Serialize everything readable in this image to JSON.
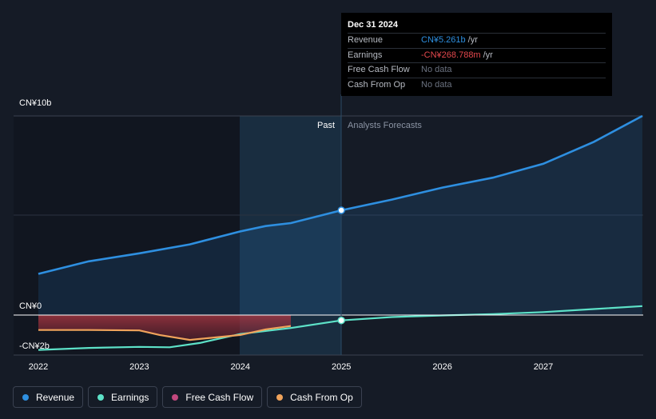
{
  "chart_data": {
    "type": "area",
    "x_ticks": [
      "2022",
      "2023",
      "2024",
      "2025",
      "2026",
      "2027"
    ],
    "y_ticks": [
      "CN¥10b",
      "CN¥0",
      "-CN¥2b"
    ],
    "ylim_billion": [
      -2,
      10
    ],
    "regions": {
      "past_label": "Past",
      "forecast_label": "Analysts Forecasts",
      "divider_date": 2025.0
    },
    "series": [
      {
        "name": "Revenue",
        "color": "#2e8fe0",
        "unit": "CN¥ billion",
        "points": [
          [
            2022.0,
            2.07
          ],
          [
            2022.5,
            2.7
          ],
          [
            2023.0,
            3.1
          ],
          [
            2023.5,
            3.55
          ],
          [
            2024.0,
            4.2
          ],
          [
            2024.25,
            4.47
          ],
          [
            2024.5,
            4.62
          ],
          [
            2025.0,
            5.261
          ],
          [
            2025.5,
            5.8
          ],
          [
            2026.0,
            6.4
          ],
          [
            2026.5,
            6.9
          ],
          [
            2027.0,
            7.6
          ],
          [
            2027.5,
            8.7
          ],
          [
            2027.98,
            10.0
          ]
        ]
      },
      {
        "name": "Earnings",
        "color": "#5de2c8",
        "unit": "CN¥ billion",
        "points": [
          [
            2022.0,
            -1.75
          ],
          [
            2022.5,
            -1.65
          ],
          [
            2023.0,
            -1.6
          ],
          [
            2023.3,
            -1.62
          ],
          [
            2023.6,
            -1.4
          ],
          [
            2024.0,
            -0.95
          ],
          [
            2024.5,
            -0.65
          ],
          [
            2025.0,
            -0.268788
          ],
          [
            2025.5,
            -0.1
          ],
          [
            2026.0,
            -0.02
          ],
          [
            2026.5,
            0.05
          ],
          [
            2027.0,
            0.15
          ],
          [
            2027.5,
            0.3
          ],
          [
            2027.98,
            0.45
          ]
        ]
      },
      {
        "name": "Free Cash Flow",
        "color": "#c2487e",
        "unit": "CN¥ billion",
        "points": []
      },
      {
        "name": "Cash From Op",
        "color": "#f0a35b",
        "unit": "CN¥ billion",
        "points": [
          [
            2022.0,
            -0.75
          ],
          [
            2022.5,
            -0.75
          ],
          [
            2023.0,
            -0.77
          ],
          [
            2023.2,
            -1.0
          ],
          [
            2023.5,
            -1.25
          ],
          [
            2024.0,
            -1.0
          ],
          [
            2024.25,
            -0.72
          ],
          [
            2024.5,
            -0.55
          ]
        ]
      }
    ],
    "highlight": {
      "date": 2025.0,
      "revenue": 5.261,
      "earnings": -0.268788
    }
  },
  "tooltip": {
    "date": "Dec 31 2024",
    "rows": [
      {
        "label": "Revenue",
        "value": "CN¥5.261b",
        "unit": "/yr",
        "color": "#2e8fe0"
      },
      {
        "label": "Earnings",
        "value": "-CN¥268.788m",
        "unit": "/yr",
        "color": "#e5484d"
      },
      {
        "label": "Free Cash Flow",
        "value": "No data",
        "unit": "",
        "color": "#6b7280"
      },
      {
        "label": "Cash From Op",
        "value": "No data",
        "unit": "",
        "color": "#6b7280"
      }
    ]
  },
  "legend": [
    {
      "label": "Revenue",
      "color": "#2e8fe0"
    },
    {
      "label": "Earnings",
      "color": "#5de2c8"
    },
    {
      "label": "Free Cash Flow",
      "color": "#c2487e"
    },
    {
      "label": "Cash From Op",
      "color": "#f0a35b"
    }
  ]
}
